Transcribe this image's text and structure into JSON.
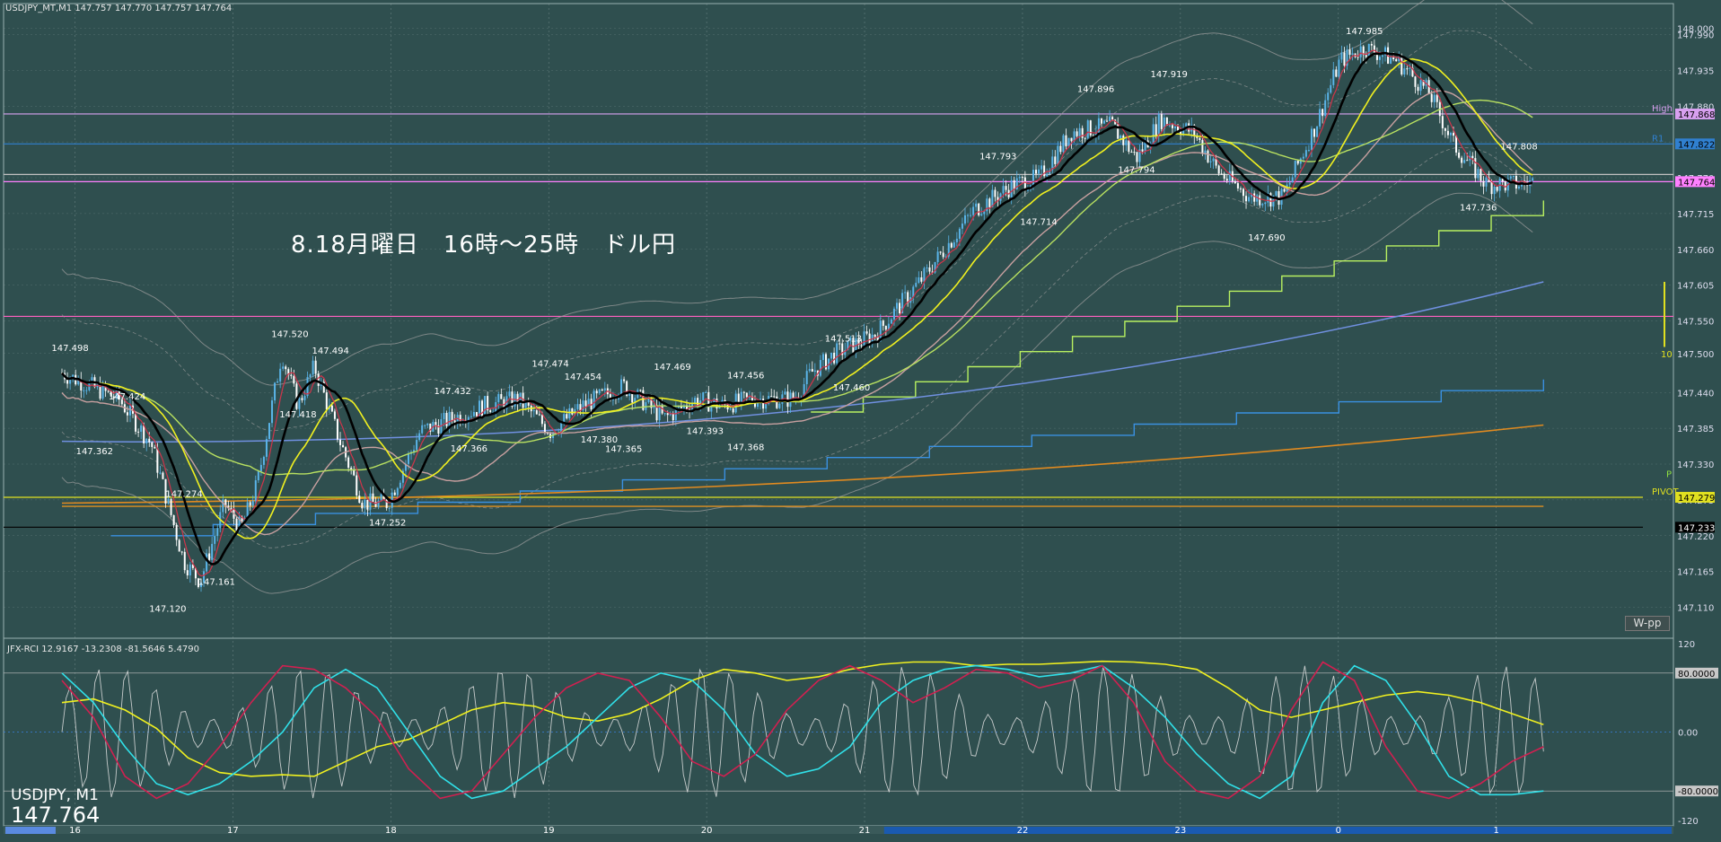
{
  "header": {
    "symbol_info": "USDJPY_MT,M1  147.757 147.770 147.757 147.764",
    "indicator_info": "JFX-RCI 12.9167 -13.2308 -81.5646 5.4790"
  },
  "annotation": "8.18月曜日　16時～25時　ドル円",
  "symbol_label": "USDJPY, M1",
  "last_price": "147.764",
  "wpp_button": "W-pp",
  "colors": {
    "background": "#2f4f4f",
    "grid": "#8aa0a0",
    "candle_up": "#5ab4e8",
    "candle_down": "#ffffff",
    "ma_black": "#000000",
    "ma_red": "#d0344a",
    "ma_yellow": "#f0f020",
    "ma_lightgreen": "#b8e060",
    "ma_pink": "#c8a0a0",
    "bollinger": "#a0a0a0",
    "rci_white": "#e0e0e0",
    "rci_red": "#d02050",
    "rci_cyan": "#30e0e8",
    "rci_yellow": "#f0f020"
  },
  "chart_data": [
    {
      "type": "candlestick",
      "title": "USDJPY_MT,M1",
      "x_ticks": [
        "16",
        "17",
        "18",
        "19",
        "20",
        "21",
        "22",
        "23",
        "0",
        "1"
      ],
      "y_ticks": [
        "148.000",
        "147.990",
        "147.935",
        "147.880",
        "147.825",
        "147.770",
        "147.715",
        "147.660",
        "147.605",
        "147.550",
        "147.500",
        "147.440",
        "147.385",
        "147.330",
        "147.275",
        "147.220",
        "147.165",
        "147.110"
      ],
      "ylim": [
        147.09,
        148.01
      ],
      "price_path": [
        [
          0,
          147.47
        ],
        [
          0.35,
          147.43
        ],
        [
          0.55,
          147.36
        ],
        [
          0.75,
          147.18
        ],
        [
          0.85,
          147.15
        ],
        [
          1.0,
          147.27
        ],
        [
          1.1,
          147.23
        ],
        [
          1.2,
          147.3
        ],
        [
          1.35,
          147.5
        ],
        [
          1.45,
          147.42
        ],
        [
          1.55,
          147.48
        ],
        [
          1.7,
          147.37
        ],
        [
          1.85,
          147.27
        ],
        [
          2.0,
          147.27
        ],
        [
          2.2,
          147.38
        ],
        [
          2.4,
          147.4
        ],
        [
          2.6,
          147.42
        ],
        [
          2.8,
          147.43
        ],
        [
          3.0,
          147.38
        ],
        [
          3.2,
          147.42
        ],
        [
          3.45,
          147.45
        ],
        [
          3.7,
          147.4
        ],
        [
          3.9,
          147.43
        ],
        [
          4.05,
          147.42
        ],
        [
          4.25,
          147.43
        ],
        [
          4.5,
          147.43
        ],
        [
          4.6,
          147.47
        ],
        [
          4.75,
          147.5
        ],
        [
          5.0,
          147.53
        ],
        [
          5.3,
          147.62
        ],
        [
          5.6,
          147.72
        ],
        [
          5.85,
          147.76
        ],
        [
          6.0,
          147.77
        ],
        [
          6.2,
          147.84
        ],
        [
          6.45,
          147.85
        ],
        [
          6.6,
          147.8
        ],
        [
          6.75,
          147.86
        ],
        [
          6.95,
          147.84
        ],
        [
          7.1,
          147.78
        ],
        [
          7.3,
          147.74
        ],
        [
          7.5,
          147.74
        ],
        [
          7.7,
          147.85
        ],
        [
          7.85,
          147.95
        ],
        [
          8.0,
          147.97
        ],
        [
          8.2,
          147.95
        ],
        [
          8.4,
          147.9
        ],
        [
          8.55,
          147.82
        ],
        [
          8.75,
          147.76
        ],
        [
          8.95,
          147.76
        ],
        [
          9.05,
          147.764
        ]
      ],
      "price_labels": [
        {
          "x": 0.05,
          "v": "147.498"
        },
        {
          "x": 0.4,
          "v": "147.424"
        },
        {
          "x": 0.2,
          "v": "147.362"
        },
        {
          "x": 0.65,
          "v": "147.120"
        },
        {
          "x": 0.75,
          "v": "147.274"
        },
        {
          "x": 0.95,
          "v": "147.161"
        },
        {
          "x": 1.4,
          "v": "147.520"
        },
        {
          "x": 1.45,
          "v": "147.418"
        },
        {
          "x": 1.65,
          "v": "147.494"
        },
        {
          "x": 2.0,
          "v": "147.252"
        },
        {
          "x": 2.4,
          "v": "147.432"
        },
        {
          "x": 2.5,
          "v": "147.366"
        },
        {
          "x": 3.0,
          "v": "147.474"
        },
        {
          "x": 3.2,
          "v": "147.454"
        },
        {
          "x": 3.3,
          "v": "147.380"
        },
        {
          "x": 3.45,
          "v": "147.365"
        },
        {
          "x": 3.75,
          "v": "147.469"
        },
        {
          "x": 3.95,
          "v": "147.393"
        },
        {
          "x": 4.2,
          "v": "147.456"
        },
        {
          "x": 4.2,
          "v": "147.368"
        },
        {
          "x": 4.8,
          "v": "147.513"
        },
        {
          "x": 4.85,
          "v": "147.460"
        },
        {
          "x": 5.75,
          "v": "147.793"
        },
        {
          "x": 6.0,
          "v": "147.714"
        },
        {
          "x": 6.35,
          "v": "147.896"
        },
        {
          "x": 6.6,
          "v": "147.794"
        },
        {
          "x": 6.8,
          "v": "147.919"
        },
        {
          "x": 7.4,
          "v": "147.690"
        },
        {
          "x": 8.0,
          "v": "147.985"
        },
        {
          "x": 8.7,
          "v": "147.736"
        },
        {
          "x": 8.95,
          "v": "147.808"
        }
      ],
      "horizontal_levels": [
        {
          "label": "High",
          "value": 147.868,
          "color": "#d8a0f0",
          "text": "147.868"
        },
        {
          "label": "R1",
          "value": 147.822,
          "color": "#3080d0",
          "text": "147.822"
        },
        {
          "label": "",
          "value": 147.775,
          "color": "#c0c0c0",
          "text": ""
        },
        {
          "label": "",
          "value": 147.764,
          "color": "#ff80ff",
          "text": "147.764"
        },
        {
          "label": "",
          "value": 147.557,
          "color": "#ff60c0",
          "text": ""
        },
        {
          "label": "PIVOT",
          "value": 147.279,
          "color": "#e0e020",
          "text": "147.279"
        },
        {
          "label": "",
          "value": 147.233,
          "color": "#000000",
          "text": "147.233"
        }
      ],
      "right_labels": [
        "148.000",
        "147.868",
        "147.822",
        "147.764",
        "147.500",
        "147.279",
        "147.233"
      ],
      "side_markers": [
        "P",
        "10"
      ]
    },
    {
      "type": "line",
      "title": "JFX-RCI",
      "y_ticks": [
        "120",
        "80.0000",
        "0.00",
        "-80.0000",
        "-120"
      ],
      "ylim": [
        -120,
        120
      ],
      "series": [
        {
          "name": "",
          "color": "#f0f020",
          "values": [
            40,
            45,
            30,
            5,
            -35,
            -55,
            -60,
            -58,
            -60,
            -40,
            -20,
            -10,
            10,
            30,
            40,
            35,
            20,
            15,
            25,
            45,
            70,
            85,
            80,
            70,
            75,
            85,
            92,
            95,
            95,
            90,
            92,
            92,
            94,
            96,
            95,
            92,
            85,
            60,
            30,
            20,
            30,
            40,
            50,
            55,
            50,
            40,
            25,
            10
          ]
        },
        {
          "name": "",
          "color": "#30e0e8",
          "values": [
            80,
            40,
            -20,
            -70,
            -85,
            -70,
            -40,
            0,
            60,
            85,
            60,
            0,
            -60,
            -90,
            -80,
            -50,
            -20,
            20,
            60,
            80,
            70,
            30,
            -30,
            -60,
            -50,
            -20,
            40,
            70,
            85,
            90,
            85,
            75,
            80,
            90,
            60,
            20,
            -30,
            -70,
            -90,
            -60,
            40,
            90,
            70,
            10,
            -60,
            -85,
            -85,
            -80
          ]
        },
        {
          "name": "",
          "color": "#d02050",
          "values": [
            70,
            20,
            -60,
            -90,
            -70,
            -20,
            40,
            90,
            85,
            60,
            20,
            -50,
            -90,
            -80,
            -30,
            20,
            60,
            80,
            70,
            20,
            -40,
            -60,
            -30,
            30,
            70,
            90,
            70,
            40,
            60,
            85,
            80,
            60,
            70,
            90,
            40,
            -40,
            -80,
            -90,
            -60,
            30,
            95,
            70,
            -20,
            -80,
            -90,
            -70,
            -40,
            -20
          ]
        }
      ]
    }
  ]
}
